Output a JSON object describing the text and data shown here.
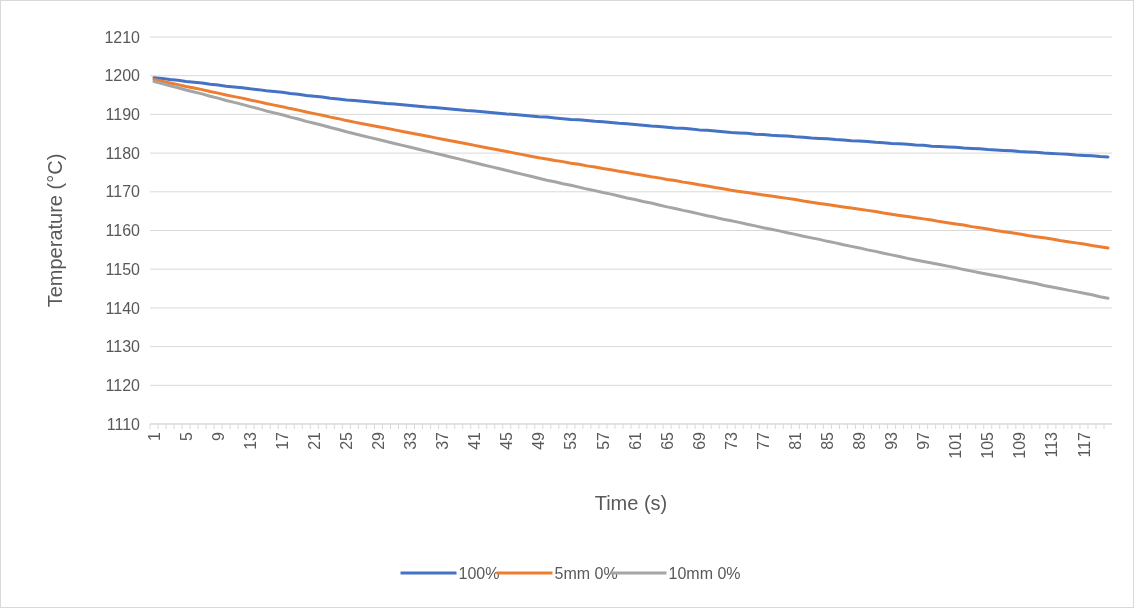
{
  "chart_data": {
    "type": "line",
    "xlabel": "Time (s)",
    "ylabel": "Temperature (°C)",
    "categories": [
      "1",
      null,
      null,
      null,
      "5",
      null,
      null,
      null,
      "9",
      null,
      null,
      null,
      "13",
      null,
      null,
      null,
      "17",
      null,
      null,
      null,
      "21",
      null,
      null,
      null,
      "25",
      null,
      null,
      null,
      "29",
      null,
      null,
      null,
      "33",
      null,
      null,
      null,
      "37",
      null,
      null,
      null,
      "41",
      null,
      null,
      null,
      "45",
      null,
      null,
      null,
      "49",
      null,
      null,
      null,
      "53",
      null,
      null,
      null,
      "57",
      null,
      null,
      null,
      "61",
      null,
      null,
      null,
      "65",
      null,
      null,
      null,
      "69",
      null,
      null,
      null,
      "73",
      null,
      null,
      null,
      "77",
      null,
      null,
      null,
      "81",
      null,
      null,
      null,
      "85",
      null,
      null,
      null,
      "89",
      null,
      null,
      null,
      "93",
      null,
      null,
      null,
      "97",
      null,
      null,
      null,
      "101",
      null,
      null,
      null,
      "105",
      null,
      null,
      null,
      "109",
      null,
      null,
      null,
      "113",
      null,
      null,
      null,
      "117",
      null,
      null,
      null
    ],
    "series": [
      {
        "name": "100%",
        "color": "#4472c4",
        "values": [
          1199.5,
          1199.3,
          1199.0,
          1198.8,
          1198.5,
          1198.3,
          1198.1,
          1197.8,
          1197.6,
          1197.3,
          1197.1,
          1196.9,
          1196.6,
          1196.4,
          1196.1,
          1195.9,
          1195.7,
          1195.4,
          1195.2,
          1194.9,
          1194.7,
          1194.5,
          1194.2,
          1194.0,
          1193.7,
          1193.6,
          1193.4,
          1193.2,
          1193.0,
          1192.8,
          1192.7,
          1192.5,
          1192.3,
          1192.1,
          1191.9,
          1191.8,
          1191.6,
          1191.4,
          1191.2,
          1191.0,
          1190.9,
          1190.7,
          1190.5,
          1190.3,
          1190.1,
          1190.0,
          1189.8,
          1189.6,
          1189.4,
          1189.3,
          1189.1,
          1188.9,
          1188.7,
          1188.6,
          1188.4,
          1188.2,
          1188.1,
          1187.9,
          1187.7,
          1187.6,
          1187.4,
          1187.2,
          1187.0,
          1186.9,
          1186.7,
          1186.5,
          1186.4,
          1186.2,
          1186.0,
          1185.9,
          1185.7,
          1185.5,
          1185.3,
          1185.2,
          1185.1,
          1184.9,
          1184.8,
          1184.6,
          1184.5,
          1184.4,
          1184.2,
          1184.1,
          1183.9,
          1183.8,
          1183.7,
          1183.5,
          1183.4,
          1183.2,
          1183.1,
          1183.0,
          1182.8,
          1182.7,
          1182.5,
          1182.4,
          1182.3,
          1182.1,
          1182.0,
          1181.8,
          1181.7,
          1181.6,
          1181.5,
          1181.3,
          1181.2,
          1181.1,
          1180.9,
          1180.8,
          1180.7,
          1180.6,
          1180.4,
          1180.3,
          1180.2,
          1180.0,
          1179.9,
          1179.8,
          1179.7,
          1179.5,
          1179.4,
          1179.3,
          1179.1,
          1179.0
        ]
      },
      {
        "name": "5mm 0%",
        "color": "#ed7d31",
        "values": [
          1199.0,
          1198.6,
          1198.1,
          1197.7,
          1197.2,
          1196.8,
          1196.4,
          1195.9,
          1195.5,
          1195.0,
          1194.6,
          1194.2,
          1193.7,
          1193.3,
          1192.8,
          1192.4,
          1192.0,
          1191.5,
          1191.1,
          1190.6,
          1190.2,
          1189.8,
          1189.3,
          1188.9,
          1188.4,
          1188.0,
          1187.6,
          1187.2,
          1186.8,
          1186.4,
          1186.0,
          1185.6,
          1185.2,
          1184.8,
          1184.4,
          1184.0,
          1183.6,
          1183.2,
          1182.8,
          1182.4,
          1182.0,
          1181.6,
          1181.2,
          1180.8,
          1180.4,
          1180.0,
          1179.6,
          1179.2,
          1178.8,
          1178.5,
          1178.1,
          1177.8,
          1177.4,
          1177.1,
          1176.7,
          1176.4,
          1176.0,
          1175.7,
          1175.3,
          1175.0,
          1174.6,
          1174.3,
          1173.9,
          1173.6,
          1173.2,
          1172.9,
          1172.5,
          1172.2,
          1171.8,
          1171.5,
          1171.1,
          1170.8,
          1170.4,
          1170.1,
          1169.8,
          1169.5,
          1169.2,
          1168.9,
          1168.6,
          1168.3,
          1168.0,
          1167.6,
          1167.3,
          1167.0,
          1166.7,
          1166.4,
          1166.1,
          1165.8,
          1165.5,
          1165.2,
          1164.9,
          1164.5,
          1164.2,
          1163.9,
          1163.6,
          1163.3,
          1163.0,
          1162.7,
          1162.3,
          1162.0,
          1161.7,
          1161.4,
          1161.0,
          1160.7,
          1160.4,
          1160.0,
          1159.7,
          1159.4,
          1159.1,
          1158.7,
          1158.4,
          1158.1,
          1157.8,
          1157.4,
          1157.1,
          1156.8,
          1156.5,
          1156.1,
          1155.8,
          1155.5
        ]
      },
      {
        "name": "10mm 0%",
        "color": "#a5a5a5",
        "values": [
          1198.5,
          1198.0,
          1197.4,
          1196.9,
          1196.3,
          1195.8,
          1195.3,
          1194.7,
          1194.2,
          1193.6,
          1193.1,
          1192.6,
          1192.0,
          1191.5,
          1190.9,
          1190.4,
          1189.9,
          1189.3,
          1188.8,
          1188.2,
          1187.7,
          1187.2,
          1186.6,
          1186.1,
          1185.5,
          1185.0,
          1184.5,
          1184.0,
          1183.5,
          1183.0,
          1182.5,
          1182.0,
          1181.5,
          1181.0,
          1180.5,
          1180.0,
          1179.5,
          1179.0,
          1178.5,
          1178.0,
          1177.5,
          1177.0,
          1176.5,
          1176.0,
          1175.5,
          1175.0,
          1174.5,
          1174.0,
          1173.5,
          1173.0,
          1172.6,
          1172.1,
          1171.7,
          1171.2,
          1170.7,
          1170.3,
          1169.8,
          1169.4,
          1168.9,
          1168.4,
          1168.0,
          1167.5,
          1167.1,
          1166.6,
          1166.1,
          1165.7,
          1165.2,
          1164.8,
          1164.3,
          1163.8,
          1163.4,
          1162.9,
          1162.5,
          1162.1,
          1161.6,
          1161.2,
          1160.7,
          1160.3,
          1159.9,
          1159.4,
          1159.0,
          1158.5,
          1158.1,
          1157.7,
          1157.2,
          1156.8,
          1156.3,
          1155.9,
          1155.5,
          1155.0,
          1154.6,
          1154.1,
          1153.7,
          1153.3,
          1152.8,
          1152.4,
          1152.0,
          1151.6,
          1151.2,
          1150.8,
          1150.4,
          1149.9,
          1149.5,
          1149.1,
          1148.7,
          1148.3,
          1147.9,
          1147.5,
          1147.1,
          1146.7,
          1146.3,
          1145.8,
          1145.4,
          1145.0,
          1144.6,
          1144.2,
          1143.8,
          1143.4,
          1142.9,
          1142.5
        ]
      }
    ],
    "ylim": [
      1110,
      1210
    ],
    "yticks": [
      1110,
      1120,
      1130,
      1140,
      1150,
      1160,
      1170,
      1180,
      1190,
      1200,
      1210
    ],
    "grid": "y",
    "legend": "bottom",
    "marker": "none",
    "line_style": "solid"
  }
}
